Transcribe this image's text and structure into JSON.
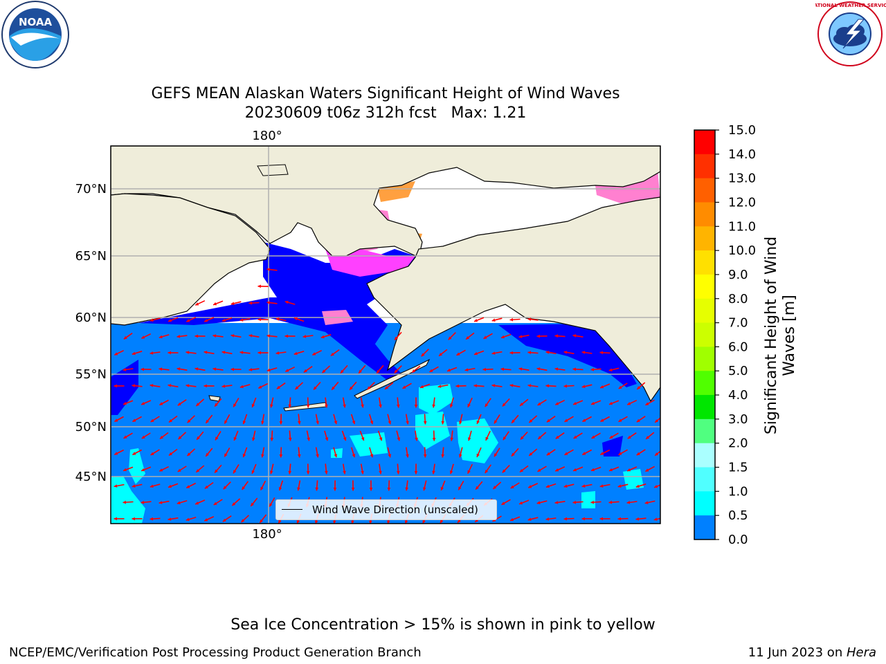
{
  "title": {
    "line1": "GEFS MEAN Alaskan Waters Significant Height of Wind Waves",
    "line2": "20230609 t06z 312h fcst   Max: 1.21"
  },
  "map": {
    "top_lon_label": "180°",
    "bottom_lon_label": "180°",
    "lat_labels": [
      "70°N",
      "65°N",
      "60°N",
      "55°N",
      "50°N",
      "45°N"
    ],
    "colors": {
      "land": "#efedda",
      "coast": "#000000",
      "grid": "#b0b0b0",
      "arrow": "#ff0000",
      "ice_pink": "#ff80d0",
      "ice_magenta": "#ff40ff",
      "ice_orange": "#ffa040"
    },
    "legend_label": "Wind Wave Direction (unscaled)"
  },
  "colorbar": {
    "title_line1": "Significant Height of Wind",
    "title_line2": "Waves [m]",
    "ticks": [
      "15.0",
      "14.0",
      "13.0",
      "12.0",
      "11.0",
      "10.0",
      "9.0",
      "8.0",
      "7.0",
      "6.0",
      "5.0",
      "4.0",
      "3.0",
      "2.0",
      "1.5",
      "1.0",
      "0.5",
      "0.0"
    ],
    "colors": [
      "#ff0000",
      "#ff3000",
      "#ff6000",
      "#ff8c00",
      "#ffb400",
      "#ffe000",
      "#ffff00",
      "#e6ff00",
      "#ccff00",
      "#a0ff00",
      "#50ff00",
      "#00e600",
      "#50ff80",
      "#aaffff",
      "#50ffff",
      "#00ffff",
      "#0080ff",
      "#0000ff"
    ]
  },
  "logos": {
    "noaa_text": "NOAA",
    "nws_text": "NATIONAL WEATHER SERVICE"
  },
  "footer": {
    "note": "Sea Ice Concentration > 15% is shown in pink to yellow",
    "left": "NCEP/EMC/Verification Post Processing Product Generation Branch",
    "right_prefix": "11 Jun 2023 on ",
    "right_machine": "Hera"
  }
}
